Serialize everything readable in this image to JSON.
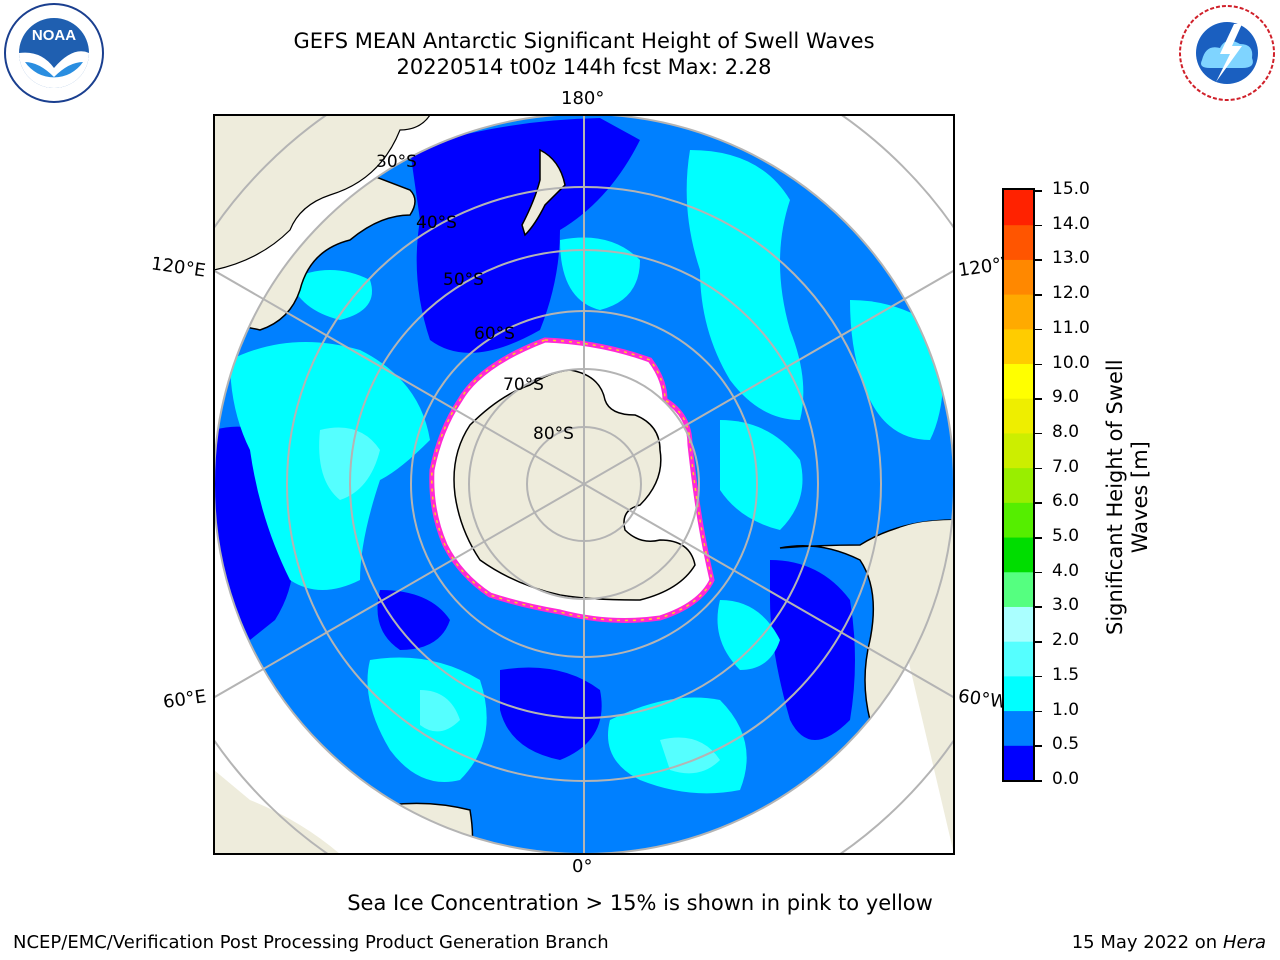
{
  "header": {
    "title_line1": "GEFS MEAN Antarctic Significant Height of Swell Waves",
    "title_line2": "20220514 t00z 144h fcst   Max: 2.28"
  },
  "logos": {
    "left": {
      "text": "NOAA",
      "ring_text": "NATIONAL OCEANIC AND ATMOSPHERIC ADMINISTRATION · U.S. DEPARTMENT OF COMMERCE"
    },
    "right": {
      "ring_text": "NATIONAL WEATHER SERVICE"
    }
  },
  "map": {
    "longitude_labels": {
      "top": "180°",
      "bottom": "0°",
      "upper_left": "120°E",
      "upper_right": "120°W",
      "lower_left": "60°E",
      "lower_right": "60°W"
    },
    "latitude_labels": [
      "30°S",
      "40°S",
      "50°S",
      "60°S",
      "70°S",
      "80°S"
    ],
    "colors": {
      "land": "#eeecdc",
      "ice": "#ffffff",
      "ice_edge": "#ff2ad4",
      "ice_edge_inner": "#ffd020",
      "gridline": "#b4b4b4",
      "coastline": "#000000"
    }
  },
  "colorbar": {
    "title_line1": "Significant Height of Swell",
    "title_line2": "Waves [m]",
    "ticks": [
      "15.0",
      "14.0",
      "13.0",
      "12.0",
      "11.0",
      "10.0",
      "9.0",
      "8.0",
      "7.0",
      "6.0",
      "5.0",
      "4.0",
      "3.0",
      "2.0",
      "1.5",
      "1.0",
      "0.5",
      "0.0"
    ],
    "colors_bottom_to_top": [
      "#0000ff",
      "#0080ff",
      "#00ffff",
      "#55ffff",
      "#aaffff",
      "#55ff80",
      "#00dd00",
      "#55ee00",
      "#99ee00",
      "#ccee00",
      "#eeee00",
      "#ffff00",
      "#ffcc00",
      "#ffaa00",
      "#ff8800",
      "#ff5500",
      "#ff2200"
    ]
  },
  "footer": {
    "note": "Sea Ice Concentration > 15% is shown in pink to yellow",
    "left": "NCEP/EMC/Verification Post Processing Product Generation Branch",
    "right_date": "15 May 2022 on",
    "right_host": "Hera"
  }
}
